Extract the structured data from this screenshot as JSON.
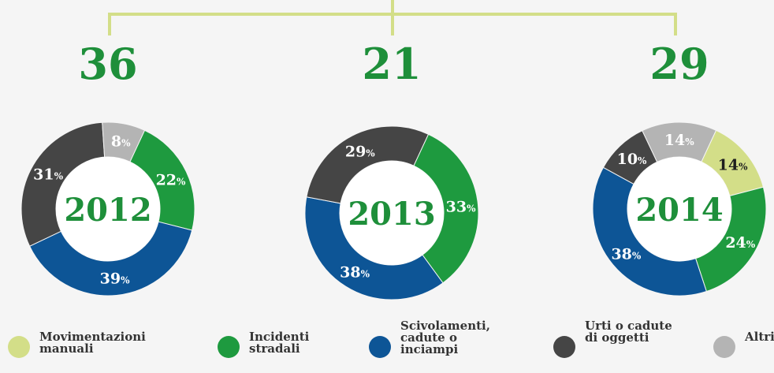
{
  "legend": {
    "items": [
      "Movimentazioni manuali",
      "Incidenti stradali",
      "Scivolamenti, cadute o inciampi",
      "Urti o cadute di oggetti",
      "Altri"
    ],
    "colors": [
      "#d3de88",
      "#1e9a3f",
      "#0d5596",
      "#454545",
      "#b4b4b4"
    ]
  },
  "chart_data": [
    {
      "type": "pie",
      "title": "36",
      "center_label": "2012",
      "values": [
        null,
        22,
        39,
        31,
        8
      ],
      "value_labels": [
        null,
        "22%",
        "39%",
        "31%",
        "8%"
      ]
    },
    {
      "type": "pie",
      "title": "21",
      "center_label": "2013",
      "values": [
        null,
        33,
        38,
        29,
        null
      ],
      "value_labels": [
        null,
        "33%",
        "38%",
        "29%",
        null
      ]
    },
    {
      "type": "pie",
      "title": "29",
      "center_label": "2014",
      "values": [
        14,
        24,
        38,
        10,
        14
      ],
      "value_labels": [
        "14%",
        "24%",
        "38%",
        "10%",
        "14%"
      ]
    }
  ]
}
